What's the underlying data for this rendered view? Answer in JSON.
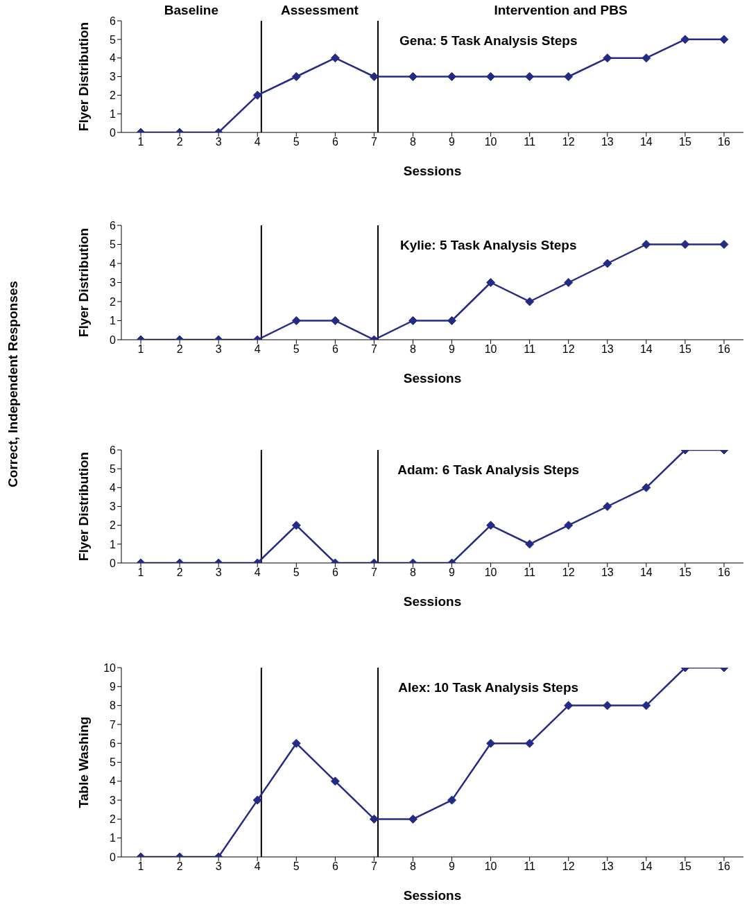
{
  "chart_data": [
    {
      "type": "line",
      "title": "Gena: 5 Task Analysis Steps",
      "xlabel": "Sessions",
      "ylabel": "Flyer Distribution",
      "x": [
        1,
        2,
        3,
        4,
        5,
        6,
        7,
        8,
        9,
        10,
        11,
        12,
        13,
        14,
        15,
        16
      ],
      "values": [
        0,
        0,
        0,
        2,
        3,
        4,
        3,
        3,
        3,
        3,
        3,
        3,
        4,
        4,
        5,
        5
      ],
      "color": "#242a85",
      "xlim": [
        0.5,
        16.5
      ],
      "xticks": [
        1,
        2,
        3,
        4,
        5,
        6,
        7,
        8,
        9,
        10,
        11,
        12,
        13,
        14,
        15,
        16
      ],
      "ylim": [
        0,
        6
      ],
      "yticks": [
        0,
        1,
        2,
        3,
        4,
        5,
        6
      ],
      "ref_lines": [
        {
          "axis": "x",
          "value": 4.1,
          "color": "#000000"
        },
        {
          "axis": "x",
          "value": 7.1,
          "color": "#000000"
        }
      ],
      "annotations": [
        "Baseline",
        "Assessment",
        "Intervention and PBS",
        "Correct, Independent Responses"
      ],
      "marker": "diamond",
      "line_style": "solid",
      "grid": false,
      "legend": false
    },
    {
      "type": "line",
      "title": "Kylie: 5 Task Analysis Steps",
      "xlabel": "Sessions",
      "ylabel": "Flyer Distribution",
      "x": [
        1,
        2,
        3,
        4,
        5,
        6,
        7,
        8,
        9,
        10,
        11,
        12,
        13,
        14,
        15,
        16
      ],
      "values": [
        0,
        0,
        0,
        0,
        1,
        1,
        0,
        1,
        1,
        3,
        2,
        3,
        4,
        5,
        5,
        5
      ],
      "color": "#242a85",
      "xlim": [
        0.5,
        16.5
      ],
      "xticks": [
        1,
        2,
        3,
        4,
        5,
        6,
        7,
        8,
        9,
        10,
        11,
        12,
        13,
        14,
        15,
        16
      ],
      "ylim": [
        0,
        6
      ],
      "yticks": [
        0,
        1,
        2,
        3,
        4,
        5,
        6
      ],
      "ref_lines": [
        {
          "axis": "x",
          "value": 4.1,
          "color": "#000000"
        },
        {
          "axis": "x",
          "value": 7.1,
          "color": "#000000"
        }
      ],
      "marker": "diamond",
      "line_style": "solid",
      "grid": false,
      "legend": false
    },
    {
      "type": "line",
      "title": "Adam: 6 Task Analysis Steps",
      "xlabel": "Sessions",
      "ylabel": "Flyer Distribution",
      "x": [
        1,
        2,
        3,
        4,
        5,
        6,
        7,
        8,
        9,
        10,
        11,
        12,
        13,
        14,
        15,
        16
      ],
      "values": [
        0,
        0,
        0,
        0,
        2,
        0,
        0,
        0,
        0,
        2,
        1,
        2,
        3,
        4,
        6,
        6
      ],
      "color": "#242a85",
      "xlim": [
        0.5,
        16.5
      ],
      "xticks": [
        1,
        2,
        3,
        4,
        5,
        6,
        7,
        8,
        9,
        10,
        11,
        12,
        13,
        14,
        15,
        16
      ],
      "ylim": [
        0,
        6
      ],
      "yticks": [
        0,
        1,
        2,
        3,
        4,
        5,
        6
      ],
      "ref_lines": [
        {
          "axis": "x",
          "value": 4.1,
          "color": "#000000"
        },
        {
          "axis": "x",
          "value": 7.1,
          "color": "#000000"
        }
      ],
      "marker": "diamond",
      "line_style": "solid",
      "grid": false,
      "legend": false
    },
    {
      "type": "line",
      "title": "Alex: 10 Task Analysis Steps",
      "xlabel": "Sessions",
      "ylabel": "Table Washing",
      "x": [
        1,
        2,
        3,
        4,
        5,
        6,
        7,
        8,
        9,
        10,
        11,
        12,
        13,
        14,
        15,
        16
      ],
      "values": [
        0,
        0,
        0,
        3,
        6,
        4,
        2,
        2,
        3,
        6,
        6,
        8,
        8,
        8,
        10,
        10
      ],
      "color": "#242a85",
      "xlim": [
        0.5,
        16.5
      ],
      "xticks": [
        1,
        2,
        3,
        4,
        5,
        6,
        7,
        8,
        9,
        10,
        11,
        12,
        13,
        14,
        15,
        16
      ],
      "ylim": [
        0,
        10
      ],
      "yticks": [
        0,
        1,
        2,
        3,
        4,
        5,
        6,
        7,
        8,
        9,
        10
      ],
      "ref_lines": [
        {
          "axis": "x",
          "value": 4.1,
          "color": "#000000"
        },
        {
          "axis": "x",
          "value": 7.1,
          "color": "#000000"
        }
      ],
      "marker": "diamond",
      "line_style": "solid",
      "grid": false,
      "legend": false
    }
  ]
}
